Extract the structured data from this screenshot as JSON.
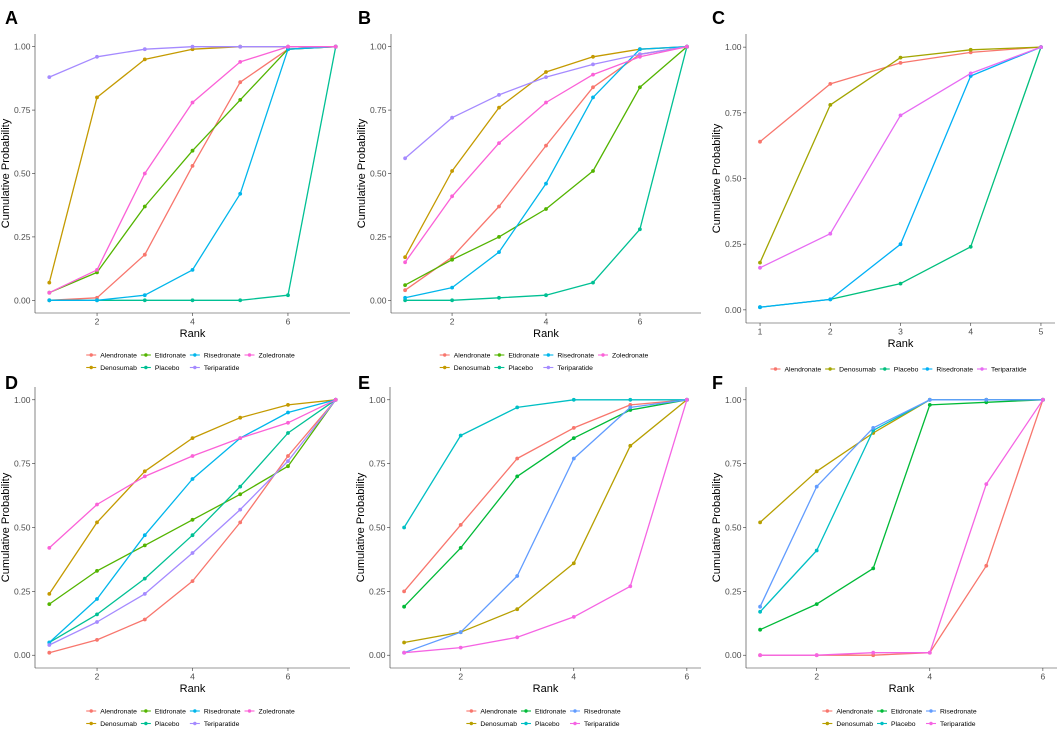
{
  "chart_data": [
    {
      "panel_label": "A",
      "type": "line",
      "xlabel": "Rank",
      "ylabel": "Cumulative Probability",
      "x": [
        1,
        2,
        3,
        4,
        5,
        6,
        7
      ],
      "xlim": [
        1,
        7
      ],
      "xticks": [
        2,
        4,
        6
      ],
      "xtick_labels": [
        "2",
        "4",
        "6"
      ],
      "ylim": [
        0,
        1
      ],
      "yticks": [
        0,
        0.25,
        0.5,
        0.75,
        1
      ],
      "ytick_labels": [
        "0.00",
        "0.25",
        "0.50",
        "0.75",
        "1.00"
      ],
      "legend_position": "bottom",
      "series": [
        {
          "name": "Alendronate",
          "color": "#F8766D",
          "values": [
            0.0,
            0.01,
            0.18,
            0.53,
            0.86,
            0.99,
            1.0
          ]
        },
        {
          "name": "Denosumab",
          "color": "#C49A00",
          "values": [
            0.07,
            0.8,
            0.95,
            0.99,
            1.0,
            1.0,
            1.0
          ]
        },
        {
          "name": "Etidronate",
          "color": "#53B400",
          "values": [
            0.03,
            0.11,
            0.37,
            0.59,
            0.79,
            0.99,
            1.0
          ]
        },
        {
          "name": "Placebo",
          "color": "#00C094",
          "values": [
            0.0,
            0.0,
            0.0,
            0.0,
            0.0,
            0.02,
            1.0
          ]
        },
        {
          "name": "Risedronate",
          "color": "#00B6EB",
          "values": [
            0.0,
            0.0,
            0.02,
            0.12,
            0.42,
            0.99,
            1.0
          ]
        },
        {
          "name": "Teriparatide",
          "color": "#A58AFF",
          "values": [
            0.88,
            0.96,
            0.99,
            1.0,
            1.0,
            1.0,
            1.0
          ]
        },
        {
          "name": "Zoledronate",
          "color": "#FB61D7",
          "values": [
            0.03,
            0.12,
            0.5,
            0.78,
            0.94,
            1.0,
            1.0
          ]
        }
      ]
    },
    {
      "panel_label": "B",
      "type": "line",
      "xlabel": "Rank",
      "ylabel": "Cumulative Probability",
      "x": [
        1,
        2,
        3,
        4,
        5,
        6,
        7
      ],
      "xlim": [
        1,
        7
      ],
      "xticks": [
        2,
        4,
        6
      ],
      "xtick_labels": [
        "2",
        "4",
        "6"
      ],
      "ylim": [
        0,
        1
      ],
      "yticks": [
        0,
        0.25,
        0.5,
        0.75,
        1
      ],
      "ytick_labels": [
        "0.00",
        "0.25",
        "0.50",
        "0.75",
        "1.00"
      ],
      "legend_position": "bottom",
      "series": [
        {
          "name": "Alendronate",
          "color": "#F8766D",
          "values": [
            0.04,
            0.17,
            0.37,
            0.61,
            0.84,
            0.97,
            1.0
          ]
        },
        {
          "name": "Denosumab",
          "color": "#C49A00",
          "values": [
            0.17,
            0.51,
            0.76,
            0.9,
            0.96,
            0.99,
            1.0
          ]
        },
        {
          "name": "Etidronate",
          "color": "#53B400",
          "values": [
            0.06,
            0.16,
            0.25,
            0.36,
            0.51,
            0.84,
            1.0
          ]
        },
        {
          "name": "Placebo",
          "color": "#00C094",
          "values": [
            0.0,
            0.0,
            0.01,
            0.02,
            0.07,
            0.28,
            1.0
          ]
        },
        {
          "name": "Risedronate",
          "color": "#00B6EB",
          "values": [
            0.01,
            0.05,
            0.19,
            0.46,
            0.8,
            0.99,
            1.0
          ]
        },
        {
          "name": "Teriparatide",
          "color": "#A58AFF",
          "values": [
            0.56,
            0.72,
            0.81,
            0.88,
            0.93,
            0.97,
            1.0
          ]
        },
        {
          "name": "Zoledronate",
          "color": "#FB61D7",
          "values": [
            0.15,
            0.41,
            0.62,
            0.78,
            0.89,
            0.96,
            1.0
          ]
        }
      ]
    },
    {
      "panel_label": "C",
      "type": "line",
      "xlabel": "Rank",
      "ylabel": "Cumulative Probability",
      "x": [
        1,
        2,
        3,
        4,
        5
      ],
      "xlim": [
        1,
        5
      ],
      "xticks": [
        1,
        2,
        3,
        4,
        5
      ],
      "xtick_labels": [
        "1",
        "2",
        "3",
        "4",
        "5"
      ],
      "ylim": [
        0,
        1
      ],
      "yticks": [
        0,
        0.25,
        0.5,
        0.75,
        1
      ],
      "ytick_labels": [
        "0.00",
        "0.25",
        "0.50",
        "0.75",
        "1.00"
      ],
      "legend_position": "bottom",
      "series": [
        {
          "name": "Alendronate",
          "color": "#F8766D",
          "values": [
            0.64,
            0.86,
            0.94,
            0.98,
            1.0
          ]
        },
        {
          "name": "Denosumab",
          "color": "#A3A500",
          "values": [
            0.18,
            0.78,
            0.96,
            0.99,
            1.0
          ]
        },
        {
          "name": "Placebo",
          "color": "#00BF7D",
          "values": [
            0.01,
            0.04,
            0.1,
            0.24,
            1.0
          ]
        },
        {
          "name": "Risedronate",
          "color": "#00B0F6",
          "values": [
            0.01,
            0.04,
            0.25,
            0.89,
            1.0
          ]
        },
        {
          "name": "Teriparatide",
          "color": "#E76BF3",
          "values": [
            0.16,
            0.29,
            0.74,
            0.9,
            1.0
          ]
        }
      ]
    },
    {
      "panel_label": "D",
      "type": "line",
      "xlabel": "Rank",
      "ylabel": "Cumulative Probability",
      "x": [
        1,
        2,
        3,
        4,
        5,
        6,
        7
      ],
      "xlim": [
        1,
        7
      ],
      "xticks": [
        2,
        4,
        6
      ],
      "xtick_labels": [
        "2",
        "4",
        "6"
      ],
      "ylim": [
        0,
        1
      ],
      "yticks": [
        0,
        0.25,
        0.5,
        0.75,
        1
      ],
      "ytick_labels": [
        "0.00",
        "0.25",
        "0.50",
        "0.75",
        "1.00"
      ],
      "legend_position": "bottom",
      "series": [
        {
          "name": "Alendronate",
          "color": "#F8766D",
          "values": [
            0.01,
            0.06,
            0.14,
            0.29,
            0.52,
            0.78,
            1.0
          ]
        },
        {
          "name": "Denosumab",
          "color": "#C49A00",
          "values": [
            0.24,
            0.52,
            0.72,
            0.85,
            0.93,
            0.98,
            1.0
          ]
        },
        {
          "name": "Etidronate",
          "color": "#53B400",
          "values": [
            0.2,
            0.33,
            0.43,
            0.53,
            0.63,
            0.74,
            1.0
          ]
        },
        {
          "name": "Placebo",
          "color": "#00C094",
          "values": [
            0.05,
            0.16,
            0.3,
            0.47,
            0.66,
            0.87,
            1.0
          ]
        },
        {
          "name": "Risedronate",
          "color": "#00B6EB",
          "values": [
            0.05,
            0.22,
            0.47,
            0.69,
            0.85,
            0.95,
            1.0
          ]
        },
        {
          "name": "Teriparatide",
          "color": "#A58AFF",
          "values": [
            0.04,
            0.13,
            0.24,
            0.4,
            0.57,
            0.76,
            1.0
          ]
        },
        {
          "name": "Zoledronate",
          "color": "#FB61D7",
          "values": [
            0.42,
            0.59,
            0.7,
            0.78,
            0.85,
            0.91,
            1.0
          ]
        }
      ]
    },
    {
      "panel_label": "E",
      "type": "line",
      "xlabel": "Rank",
      "ylabel": "Cumulative Probability",
      "x": [
        1,
        2,
        3,
        4,
        5,
        6
      ],
      "xlim": [
        1,
        6
      ],
      "xticks": [
        2,
        4,
        6
      ],
      "xtick_labels": [
        "2",
        "4",
        "6"
      ],
      "ylim": [
        0,
        1
      ],
      "yticks": [
        0,
        0.25,
        0.5,
        0.75,
        1
      ],
      "ytick_labels": [
        "0.00",
        "0.25",
        "0.50",
        "0.75",
        "1.00"
      ],
      "legend_position": "bottom",
      "series": [
        {
          "name": "Alendronate",
          "color": "#F8766D",
          "values": [
            0.25,
            0.51,
            0.77,
            0.89,
            0.98,
            1.0
          ]
        },
        {
          "name": "Denosumab",
          "color": "#B79F00",
          "values": [
            0.05,
            0.09,
            0.18,
            0.36,
            0.82,
            1.0
          ]
        },
        {
          "name": "Etidronate",
          "color": "#00BA38",
          "values": [
            0.19,
            0.42,
            0.7,
            0.85,
            0.96,
            1.0
          ]
        },
        {
          "name": "Placebo",
          "color": "#00BFC4",
          "values": [
            0.5,
            0.86,
            0.97,
            1.0,
            1.0,
            1.0
          ]
        },
        {
          "name": "Risedronate",
          "color": "#619CFF",
          "values": [
            0.01,
            0.09,
            0.31,
            0.77,
            0.97,
            1.0
          ]
        },
        {
          "name": "Teriparatide",
          "color": "#F564E3",
          "values": [
            0.01,
            0.03,
            0.07,
            0.15,
            0.27,
            1.0
          ]
        }
      ]
    },
    {
      "panel_label": "F",
      "type": "line",
      "xlabel": "Rank",
      "ylabel": "Cumulative Probability",
      "x": [
        1,
        2,
        3,
        4,
        5,
        6
      ],
      "xlim": [
        1,
        6
      ],
      "xticks": [
        2,
        4,
        6
      ],
      "xtick_labels": [
        "2",
        "4",
        "6"
      ],
      "ylim": [
        0,
        1
      ],
      "yticks": [
        0,
        0.25,
        0.5,
        0.75,
        1
      ],
      "ytick_labels": [
        "0.00",
        "0.25",
        "0.50",
        "0.75",
        "1.00"
      ],
      "legend_position": "bottom",
      "series": [
        {
          "name": "Alendronate",
          "color": "#F8766D",
          "values": [
            0.0,
            0.0,
            0.0,
            0.01,
            0.35,
            1.0
          ]
        },
        {
          "name": "Denosumab",
          "color": "#B79F00",
          "values": [
            0.52,
            0.72,
            0.87,
            1.0,
            1.0,
            1.0
          ]
        },
        {
          "name": "Etidronate",
          "color": "#00BA38",
          "values": [
            0.1,
            0.2,
            0.34,
            0.98,
            0.99,
            1.0
          ]
        },
        {
          "name": "Placebo",
          "color": "#00BFC4",
          "values": [
            0.17,
            0.41,
            0.88,
            1.0,
            1.0,
            1.0
          ]
        },
        {
          "name": "Risedronate",
          "color": "#619CFF",
          "values": [
            0.19,
            0.66,
            0.89,
            1.0,
            1.0,
            1.0
          ]
        },
        {
          "name": "Teriparatide",
          "color": "#F564E3",
          "values": [
            0.0,
            0.0,
            0.01,
            0.01,
            0.67,
            1.0
          ]
        }
      ]
    }
  ]
}
